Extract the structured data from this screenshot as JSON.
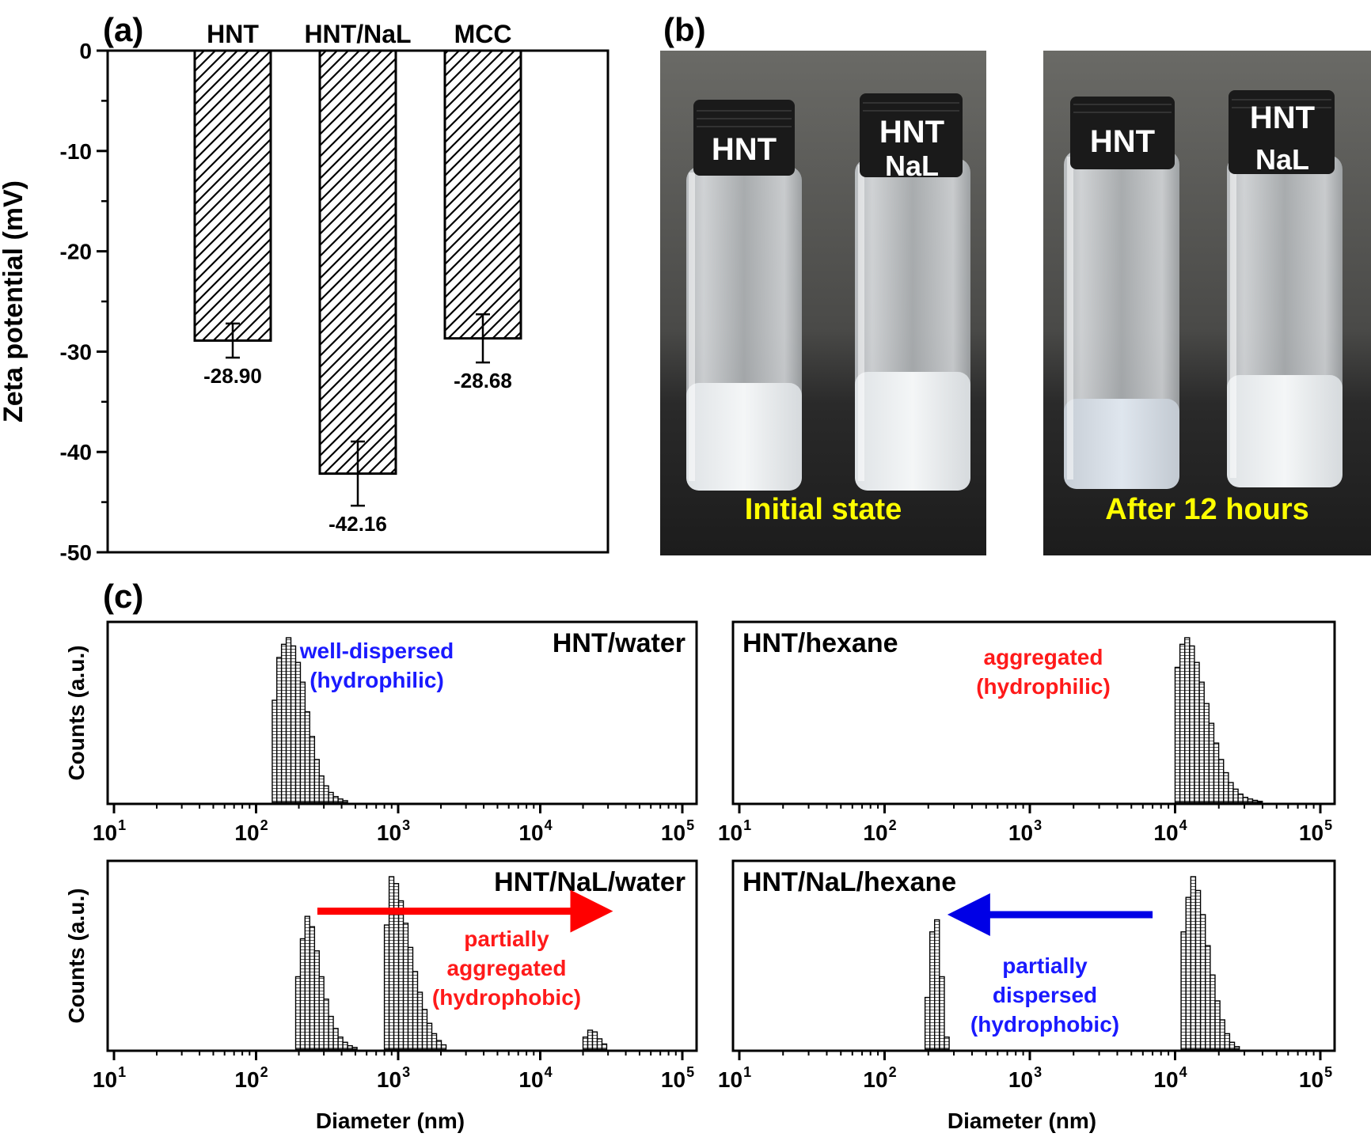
{
  "panel_labels": {
    "a": "(a)",
    "b": "(b)",
    "c": "(c)"
  },
  "colors": {
    "axis": "#000000",
    "blue_text": "#1a1aff",
    "red_text": "#ff1a1a",
    "red_arrow": "#ff0000",
    "blue_arrow": "#0000e6",
    "photo_caption": "#ffff00",
    "cap_text": "#ffffff"
  },
  "photos": {
    "left": {
      "caption": "Initial state",
      "vials": [
        {
          "cap_lines": [
            "HNT"
          ]
        },
        {
          "cap_lines": [
            "HNT",
            "NaL"
          ]
        }
      ]
    },
    "right": {
      "caption": "After 12 hours",
      "vials": [
        {
          "cap_lines": [
            "HNT"
          ]
        },
        {
          "cap_lines": [
            "HNT",
            "NaL"
          ]
        }
      ]
    }
  },
  "chart_data": [
    {
      "id": "zeta",
      "type": "bar",
      "categories": [
        "HNT",
        "HNT/NaL",
        "MCC"
      ],
      "values": [
        -28.9,
        -42.16,
        -28.68
      ],
      "error": [
        1.7,
        3.2,
        2.4
      ],
      "value_labels": [
        "-28.90",
        "-42.16",
        "-28.68"
      ],
      "ylabel": "Zeta potential (mV)",
      "ylim": [
        -50,
        0
      ],
      "yticks": [
        "0",
        "-10",
        "-20",
        "-30",
        "-40",
        "-50"
      ]
    },
    {
      "id": "hnt-water",
      "type": "bar",
      "title": "HNT/water",
      "xlabel": "",
      "ylabel": "Counts (a.u.)",
      "xscale": "log",
      "xlim": [
        10,
        100000
      ],
      "xticks": [
        {
          "base": "10",
          "exp": "1"
        },
        {
          "base": "10",
          "exp": "2"
        },
        {
          "base": "10",
          "exp": "3"
        },
        {
          "base": "10",
          "exp": "4"
        },
        {
          "base": "10",
          "exp": "5"
        }
      ],
      "bin_starts": [
        130,
        140,
        151,
        163,
        176,
        190,
        205,
        221,
        239,
        258,
        278,
        300,
        324,
        350,
        378,
        408
      ],
      "bin_width_log": 0.033,
      "counts": [
        0.62,
        0.88,
        0.96,
        1.0,
        0.95,
        0.85,
        0.73,
        0.55,
        0.4,
        0.26,
        0.16,
        0.1,
        0.06,
        0.035,
        0.02,
        0.01
      ],
      "annotation": [
        "well-dispersed",
        "(hydrophilic)"
      ],
      "annotation_color": "blue"
    },
    {
      "id": "hnt-hexane",
      "type": "bar",
      "title": "HNT/hexane",
      "xlabel": "",
      "ylabel": "",
      "xscale": "log",
      "xlim": [
        10,
        100000
      ],
      "xticks": [
        {
          "base": "10",
          "exp": "1"
        },
        {
          "base": "10",
          "exp": "2"
        },
        {
          "base": "10",
          "exp": "3"
        },
        {
          "base": "10",
          "exp": "4"
        },
        {
          "base": "10",
          "exp": "5"
        }
      ],
      "bin_starts": [
        10000,
        10800,
        11660,
        12590,
        13600,
        14690,
        15860,
        17130,
        18500,
        19980,
        21580,
        23300,
        25160,
        27170,
        29340,
        31690,
        34220,
        36960
      ],
      "bin_width_log": 0.033,
      "counts": [
        0.82,
        0.96,
        1.0,
        0.95,
        0.85,
        0.73,
        0.6,
        0.48,
        0.36,
        0.26,
        0.18,
        0.12,
        0.08,
        0.05,
        0.03,
        0.02,
        0.012,
        0.006
      ],
      "annotation": [
        "aggregated",
        "(hydrophilic)"
      ],
      "annotation_color": "red"
    },
    {
      "id": "hnt-nal-water",
      "type": "bar",
      "title": "HNT/NaL/water",
      "xlabel": "Diameter  (nm)",
      "ylabel": "Counts (a.u.)",
      "xscale": "log",
      "xlim": [
        10,
        100000
      ],
      "xticks": [
        {
          "base": "10",
          "exp": "1"
        },
        {
          "base": "10",
          "exp": "2"
        },
        {
          "base": "10",
          "exp": "3"
        },
        {
          "base": "10",
          "exp": "4"
        },
        {
          "base": "10",
          "exp": "5"
        }
      ],
      "bin_starts": [
        190,
        205,
        221,
        239,
        258,
        278,
        300,
        324,
        350,
        378,
        408,
        441,
        476,
        800,
        864,
        933,
        1008,
        1088,
        1175,
        1269,
        1371,
        1480,
        1599,
        1727,
        1865,
        2014,
        20000,
        21600,
        23330,
        25200,
        27210
      ],
      "bin_width_log": 0.033,
      "counts": [
        0.42,
        0.64,
        0.77,
        0.71,
        0.57,
        0.42,
        0.29,
        0.19,
        0.12,
        0.07,
        0.04,
        0.02,
        0.01,
        0.72,
        1.0,
        0.96,
        0.86,
        0.73,
        0.59,
        0.45,
        0.33,
        0.23,
        0.15,
        0.09,
        0.05,
        0.025,
        0.07,
        0.11,
        0.1,
        0.06,
        0.03
      ],
      "annotation": [
        "partially",
        "aggregated",
        "(hydrophobic)"
      ],
      "annotation_color": "red",
      "arrow": {
        "from": 270,
        "to": 23000,
        "direction": "right",
        "level": 0.8
      }
    },
    {
      "id": "hnt-nal-hexane",
      "type": "bar",
      "title": "HNT/NaL/hexane",
      "xlabel": "Diameter  (nm)",
      "ylabel": "",
      "xscale": "log",
      "xlim": [
        10,
        100000
      ],
      "xticks": [
        {
          "base": "10",
          "exp": "1"
        },
        {
          "base": "10",
          "exp": "2"
        },
        {
          "base": "10",
          "exp": "3"
        },
        {
          "base": "10",
          "exp": "4"
        },
        {
          "base": "10",
          "exp": "5"
        }
      ],
      "bin_starts": [
        190,
        205,
        221,
        239,
        258,
        11000,
        11880,
        12830,
        13860,
        14970,
        16170,
        17460,
        18860,
        20370,
        22000,
        23760,
        25660
      ],
      "bin_width_log": 0.033,
      "counts": [
        0.3,
        0.68,
        0.75,
        0.42,
        0.07,
        0.68,
        0.88,
        1.0,
        0.92,
        0.78,
        0.6,
        0.43,
        0.28,
        0.17,
        0.09,
        0.04,
        0.015
      ],
      "annotation": [
        "partially",
        "dispersed",
        "(hydrophobic)"
      ],
      "annotation_color": "blue",
      "arrow": {
        "from": 7000,
        "to": 380,
        "direction": "left",
        "level": 0.78
      }
    }
  ]
}
